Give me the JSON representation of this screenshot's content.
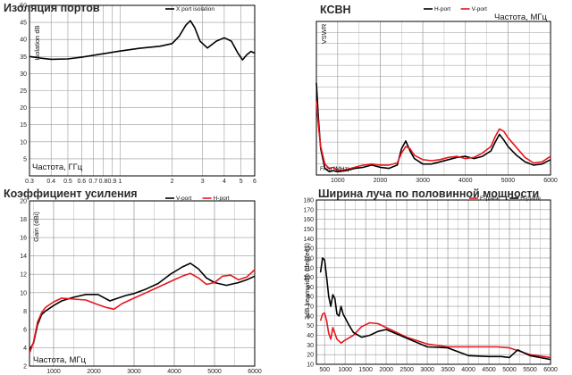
{
  "colors": {
    "black": "#000000",
    "red": "#e8161c",
    "grid": "#9a9a9a",
    "frame": "#000000"
  },
  "chart_data": [
    {
      "id": "isolation",
      "type": "line",
      "title": "Изоляция портов",
      "xlabel": "Частота, ГГц",
      "ylabel": "Isolation dB",
      "xscale": "log",
      "xlim": [
        0.3,
        6
      ],
      "ylim": [
        0,
        50
      ],
      "xticks": [
        0.3,
        0.4,
        0.5,
        0.6,
        0.7,
        0.8,
        0.9,
        1,
        2,
        3,
        4,
        5,
        6
      ],
      "xticklabels": [
        "0.3",
        "0.4",
        "0.5",
        "0.6",
        "0.7",
        "0.8",
        "0.9",
        "1",
        "2",
        "3",
        "4",
        "5",
        "6"
      ],
      "yticks": [
        0,
        5,
        10,
        15,
        20,
        25,
        30,
        35,
        40,
        45,
        50
      ],
      "yticklabels": [
        "",
        "5",
        "10",
        "15",
        "20",
        "25",
        "30",
        "35",
        "40",
        "45",
        "50"
      ],
      "legend": "top-center",
      "series": [
        {
          "name": "X port isolation",
          "color": "#000000",
          "x": [
            0.3,
            0.35,
            0.4,
            0.5,
            0.6,
            0.8,
            1.0,
            1.3,
            1.7,
            2.0,
            2.2,
            2.4,
            2.55,
            2.7,
            2.9,
            3.2,
            3.6,
            4.0,
            4.4,
            4.8,
            5.1,
            5.4,
            5.7,
            6.0
          ],
          "y": [
            35,
            34.5,
            34.2,
            34.3,
            34.8,
            35.8,
            36.6,
            37.4,
            38,
            38.8,
            41,
            44.2,
            45.5,
            43.5,
            39.5,
            37.5,
            39.5,
            40.5,
            39.5,
            36,
            34,
            35.5,
            36.5,
            36
          ]
        }
      ]
    },
    {
      "id": "vswr",
      "type": "line",
      "title": "КСВН",
      "xlabel": "Freq (MHz)",
      "ylabel": "VSWR",
      "annotation": "Частота, МГц",
      "xlim": [
        500,
        6000
      ],
      "ylim": [
        1,
        8
      ],
      "xticks": [
        1000,
        2000,
        3000,
        4000,
        5000,
        6000
      ],
      "xticklabels": [
        "1000",
        "2000",
        "3000",
        "4000",
        "5000",
        "6000"
      ],
      "yticks": [],
      "yticklabels": [],
      "legend": "top-center",
      "series": [
        {
          "name": "H-port",
          "color": "#000000",
          "x": [
            500,
            550,
            600,
            700,
            800,
            900,
            1000,
            1200,
            1400,
            1600,
            1800,
            2000,
            2200,
            2400,
            2500,
            2600,
            2700,
            2800,
            3000,
            3200,
            3400,
            3600,
            3800,
            4000,
            4200,
            4400,
            4600,
            4700,
            4800,
            4900,
            5000,
            5200,
            5400,
            5600,
            5800,
            6000
          ],
          "y": [
            5.2,
            3.5,
            2.2,
            1.3,
            1.15,
            1.2,
            1.15,
            1.2,
            1.3,
            1.35,
            1.45,
            1.35,
            1.3,
            1.45,
            2.2,
            2.55,
            2.1,
            1.75,
            1.5,
            1.5,
            1.6,
            1.7,
            1.8,
            1.85,
            1.75,
            1.85,
            2.1,
            2.5,
            2.85,
            2.6,
            2.3,
            1.9,
            1.6,
            1.45,
            1.5,
            1.7
          ]
        },
        {
          "name": "V-port",
          "color": "#e8161c",
          "x": [
            500,
            550,
            600,
            700,
            800,
            900,
            1000,
            1200,
            1400,
            1600,
            1800,
            2000,
            2200,
            2400,
            2500,
            2600,
            2700,
            2800,
            3000,
            3200,
            3400,
            3600,
            3800,
            4000,
            4200,
            4400,
            4600,
            4700,
            4800,
            4900,
            5000,
            5200,
            5400,
            5600,
            5800,
            6000
          ],
          "y": [
            4.4,
            3.2,
            2.3,
            1.5,
            1.3,
            1.35,
            1.2,
            1.25,
            1.35,
            1.45,
            1.5,
            1.45,
            1.45,
            1.55,
            2.0,
            2.3,
            2.2,
            1.9,
            1.7,
            1.65,
            1.7,
            1.8,
            1.85,
            1.75,
            1.8,
            2.0,
            2.3,
            2.75,
            3.1,
            3.0,
            2.7,
            2.25,
            1.8,
            1.55,
            1.6,
            1.85
          ]
        }
      ]
    },
    {
      "id": "gain",
      "type": "line",
      "title": "Коэффициент усиления",
      "xlabel": "Частота, МГц",
      "ylabel": "Gain (dBi)",
      "xlim": [
        400,
        6000
      ],
      "ylim": [
        2,
        20
      ],
      "xticks": [
        1000,
        2000,
        3000,
        4000,
        5000,
        6000
      ],
      "xticklabels": [
        "1000",
        "2000",
        "3000",
        "4000",
        "5000",
        "6000"
      ],
      "yticks": [
        2,
        4,
        6,
        8,
        10,
        12,
        14,
        16,
        18,
        20
      ],
      "yticklabels": [
        "2",
        "4",
        "6",
        "8",
        "10",
        "12",
        "14",
        "16",
        "18",
        "20"
      ],
      "legend": "top-center",
      "series": [
        {
          "name": "V-port",
          "color": "#000000",
          "x": [
            400,
            500,
            600,
            700,
            800,
            1000,
            1200,
            1500,
            1800,
            2100,
            2400,
            2600,
            2800,
            3000,
            3300,
            3600,
            3900,
            4200,
            4400,
            4600,
            4800,
            5000,
            5300,
            5600,
            5800,
            6000
          ],
          "y": [
            3.8,
            4.5,
            6.5,
            7.6,
            8.0,
            8.6,
            9.1,
            9.5,
            9.8,
            9.8,
            9.1,
            9.4,
            9.7,
            9.9,
            10.4,
            11.0,
            12.0,
            12.8,
            13.2,
            12.6,
            11.6,
            11.1,
            10.8,
            11.1,
            11.4,
            11.8
          ]
        },
        {
          "name": "H-port",
          "color": "#e8161c",
          "x": [
            400,
            500,
            600,
            700,
            800,
            1000,
            1200,
            1500,
            1800,
            2100,
            2300,
            2500,
            2700,
            3000,
            3300,
            3600,
            3900,
            4200,
            4400,
            4600,
            4800,
            5000,
            5200,
            5400,
            5600,
            5800,
            6000
          ],
          "y": [
            3.4,
            4.6,
            6.8,
            7.8,
            8.4,
            9.0,
            9.4,
            9.3,
            9.2,
            8.7,
            8.4,
            8.2,
            8.8,
            9.4,
            10.0,
            10.6,
            11.2,
            11.8,
            12.1,
            11.6,
            10.9,
            11.1,
            11.8,
            11.9,
            11.4,
            11.7,
            12.5
          ]
        }
      ]
    },
    {
      "id": "beamwidth",
      "type": "line",
      "title": "Ширина луча по половинной мощности",
      "xlabel": "",
      "ylabel": "3dB beamwidth (degrees)",
      "xlim": [
        300,
        6000
      ],
      "ylim": [
        10,
        180
      ],
      "xticks": [
        500,
        1000,
        1500,
        2000,
        2500,
        3000,
        3500,
        4000,
        4500,
        5000,
        5500,
        6000
      ],
      "xticklabels": [
        "500",
        "1000",
        "1500",
        "2000",
        "2500",
        "3000",
        "3500",
        "4000",
        "4500",
        "5000",
        "5500",
        "6000"
      ],
      "yticks": [
        10,
        20,
        30,
        40,
        50,
        60,
        70,
        80,
        90,
        100,
        110,
        120,
        130,
        140,
        150,
        160,
        170,
        180
      ],
      "yticklabels": [
        "10",
        "20",
        "30",
        "40",
        "50",
        "60",
        "70",
        "80",
        "90",
        "100",
        "110",
        "120",
        "130",
        "140",
        "150",
        "160",
        "170",
        "180"
      ],
      "legend": "top-center",
      "series": [
        {
          "name": "E-plane",
          "color": "#e8161c",
          "x": [
            400,
            450,
            500,
            550,
            600,
            650,
            700,
            750,
            800,
            900,
            1000,
            1200,
            1400,
            1600,
            1800,
            2000,
            2500,
            3000,
            3500,
            4000,
            4500,
            4700,
            5000,
            5500,
            6000
          ],
          "y": [
            55,
            62,
            63,
            55,
            42,
            36,
            48,
            42,
            36,
            32,
            35,
            40,
            49,
            53,
            52,
            48,
            38,
            31,
            28,
            28,
            28,
            28,
            27,
            20,
            17
          ]
        },
        {
          "name": "H-plane",
          "color": "#000000",
          "x": [
            400,
            450,
            500,
            550,
            600,
            650,
            700,
            750,
            800,
            850,
            900,
            950,
            1000,
            1100,
            1200,
            1400,
            1600,
            1800,
            2000,
            2500,
            3000,
            3500,
            4000,
            4500,
            4800,
            5000,
            5200,
            5500,
            6000
          ],
          "y": [
            105,
            120,
            118,
            100,
            80,
            70,
            82,
            78,
            62,
            60,
            70,
            62,
            58,
            50,
            43,
            38,
            40,
            44,
            46,
            37,
            28,
            27,
            19,
            18,
            18,
            17,
            25,
            19,
            15
          ]
        }
      ]
    }
  ]
}
